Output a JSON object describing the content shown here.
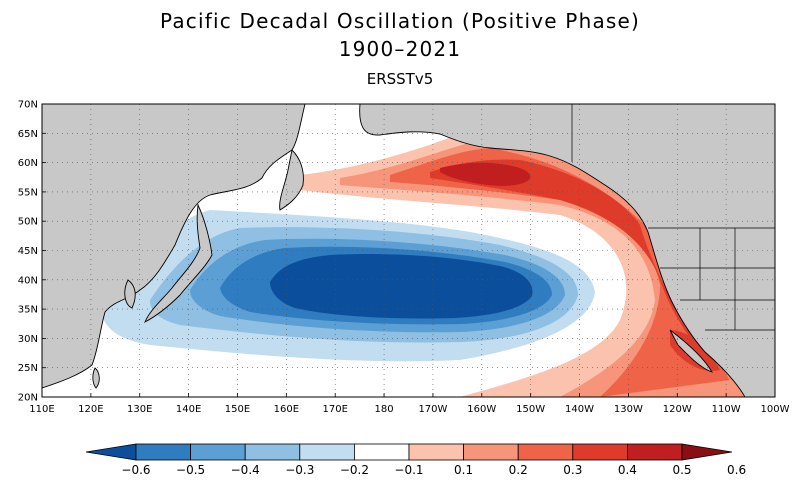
{
  "title_line1": "Pacific Decadal Oscillation (Positive Phase)",
  "title_line2": "1900–2021",
  "subtitle": "ERSSTv5",
  "lat_labels": [
    "70N",
    "65N",
    "60N",
    "55N",
    "50N",
    "45N",
    "40N",
    "35N",
    "30N",
    "25N",
    "20N"
  ],
  "lon_labels": [
    "110E",
    "120E",
    "130E",
    "140E",
    "150E",
    "160E",
    "170E",
    "180",
    "170W",
    "160W",
    "150W",
    "140W",
    "130W",
    "120W",
    "110W",
    "100W"
  ],
  "colorbar": {
    "labels": [
      "−0.6",
      "−0.5",
      "−0.4",
      "−0.3",
      "−0.2",
      "−0.1",
      "0.1",
      "0.2",
      "0.3",
      "0.4",
      "0.5",
      "0.6"
    ],
    "colors": [
      "#0b4f9c",
      "#2f7cc0",
      "#5c9fd4",
      "#8fbfe3",
      "#c2dcf0",
      "#ffffff",
      "#fbc2ad",
      "#f7957a",
      "#ef6449",
      "#de3b2b",
      "#c11f1f",
      "#8a0f14"
    ]
  },
  "colors": {
    "land": "#c8c8c8",
    "coast": "#000000"
  }
}
